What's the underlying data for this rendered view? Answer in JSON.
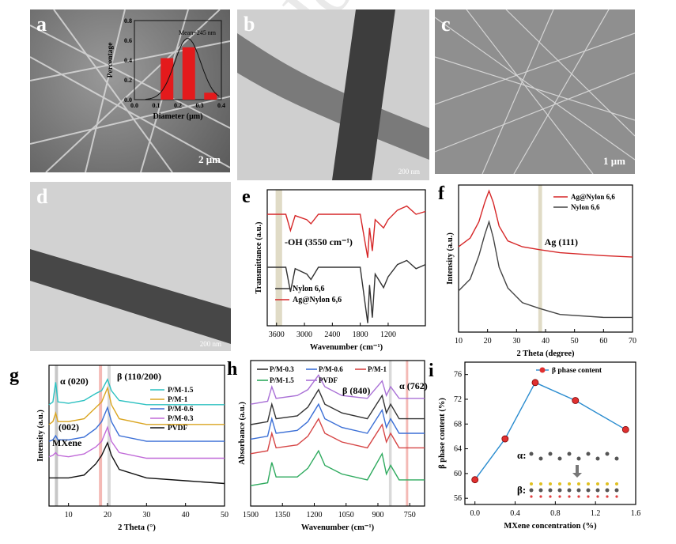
{
  "panels": {
    "a": {
      "label": "a",
      "scale_bar": "2 μm",
      "inset": {
        "type": "bar",
        "xlabel": "Diameter (μm)",
        "ylabel": "Percentage",
        "fit_label": "Mean=245 nm",
        "x_ticks": [
          "0.0",
          "0.1",
          "0.2",
          "0.3",
          "0.4"
        ],
        "y_ticks": [
          "0.0",
          "0.2",
          "0.4",
          "0.6",
          "0.8"
        ],
        "bars": [
          {
            "x": 0.15,
            "y": 0.42
          },
          {
            "x": 0.25,
            "y": 0.53
          },
          {
            "x": 0.35,
            "y": 0.07
          }
        ],
        "bar_color": "#e41a1c"
      }
    },
    "b": {
      "label": "b",
      "scale_bar": "200 nm"
    },
    "c": {
      "label": "c",
      "scale_bar": "1 μm"
    },
    "d": {
      "label": "d",
      "scale_bar": "200 nm"
    }
  },
  "chart_data": [
    {
      "panel": "e",
      "type": "line",
      "xlabel": "Wavenumber (cm⁻¹)",
      "ylabel": "Transmittance (a.u.)",
      "x_ticks": [
        3600,
        3000,
        2400,
        1800,
        1200
      ],
      "xlim": [
        3800,
        400
      ],
      "reversed_x": true,
      "annotation": "-OH (3550 cm⁻¹)",
      "highlight_band": [
        3480,
        3620
      ],
      "series": [
        {
          "name": "Nylon 6,6",
          "color": "#333333",
          "points": [
            [
              3800,
              0.43
            ],
            [
              3400,
              0.43
            ],
            [
              3300,
              0.25
            ],
            [
              3200,
              0.42
            ],
            [
              2950,
              0.38
            ],
            [
              2860,
              0.34
            ],
            [
              2700,
              0.43
            ],
            [
              1800,
              0.43
            ],
            [
              1640,
              0.02
            ],
            [
              1600,
              0.3
            ],
            [
              1540,
              0.06
            ],
            [
              1480,
              0.38
            ],
            [
              1300,
              0.28
            ],
            [
              1200,
              0.36
            ],
            [
              1000,
              0.45
            ],
            [
              800,
              0.48
            ],
            [
              600,
              0.42
            ],
            [
              400,
              0.45
            ]
          ]
        },
        {
          "name": "Ag@Nylon 6,6",
          "color": "#d62728",
          "points": [
            [
              3800,
              0.82
            ],
            [
              3400,
              0.82
            ],
            [
              3300,
              0.7
            ],
            [
              3200,
              0.81
            ],
            [
              2950,
              0.78
            ],
            [
              2860,
              0.75
            ],
            [
              2700,
              0.82
            ],
            [
              1800,
              0.82
            ],
            [
              1640,
              0.5
            ],
            [
              1600,
              0.72
            ],
            [
              1540,
              0.55
            ],
            [
              1480,
              0.78
            ],
            [
              1300,
              0.72
            ],
            [
              1200,
              0.78
            ],
            [
              1000,
              0.85
            ],
            [
              800,
              0.88
            ],
            [
              600,
              0.82
            ],
            [
              400,
              0.84
            ]
          ]
        }
      ]
    },
    {
      "panel": "f",
      "type": "line",
      "xlabel": "2 Theta (degree)",
      "ylabel": "Intensity (a.u.)",
      "x_ticks": [
        10,
        20,
        30,
        40,
        50,
        60,
        70
      ],
      "xlim": [
        10,
        70
      ],
      "annotation": "Ag (111)",
      "highlight_band": [
        37.5,
        38.8
      ],
      "series": [
        {
          "name": "Ag@Nylon 6,6",
          "color": "#d62728",
          "points": [
            [
              10,
              0.58
            ],
            [
              14,
              0.64
            ],
            [
              17,
              0.75
            ],
            [
              19,
              0.88
            ],
            [
              20.5,
              0.96
            ],
            [
              22,
              0.88
            ],
            [
              24,
              0.72
            ],
            [
              27,
              0.62
            ],
            [
              32,
              0.58
            ],
            [
              38,
              0.56
            ],
            [
              45,
              0.54
            ],
            [
              60,
              0.52
            ],
            [
              70,
              0.51
            ]
          ]
        },
        {
          "name": "Nylon 6,6",
          "color": "#444444",
          "points": [
            [
              10,
              0.28
            ],
            [
              14,
              0.36
            ],
            [
              17,
              0.52
            ],
            [
              19,
              0.66
            ],
            [
              20.5,
              0.75
            ],
            [
              22,
              0.64
            ],
            [
              24,
              0.44
            ],
            [
              27,
              0.3
            ],
            [
              32,
              0.2
            ],
            [
              38,
              0.16
            ],
            [
              45,
              0.12
            ],
            [
              60,
              0.1
            ],
            [
              70,
              0.1
            ]
          ]
        }
      ]
    },
    {
      "panel": "g",
      "type": "line",
      "xlabel": "2 Theta (°)",
      "ylabel": "Intensity (a.u.)",
      "x_ticks": [
        10,
        20,
        30,
        40,
        50
      ],
      "xlim": [
        5,
        50
      ],
      "annotations": [
        "α (020)",
        "β (110/200)",
        "(002)",
        "MXene"
      ],
      "highlight_bands": [
        {
          "range": [
            6.5,
            7.3
          ],
          "color": "#b9b9b9"
        },
        {
          "range": [
            17.8,
            18.6
          ],
          "color": "#f1a7a3"
        },
        {
          "range": [
            20.0,
            20.8
          ],
          "color": "#cfcfcf"
        }
      ],
      "series": [
        {
          "name": "P/M-1.5",
          "color": "#2cc1c1",
          "points": [
            [
              5,
              0.72
            ],
            [
              6,
              0.74
            ],
            [
              6.7,
              0.88
            ],
            [
              7.3,
              0.74
            ],
            [
              10,
              0.73
            ],
            [
              14,
              0.75
            ],
            [
              17,
              0.8
            ],
            [
              18.5,
              0.82
            ],
            [
              20,
              0.9
            ],
            [
              21,
              0.82
            ],
            [
              23,
              0.75
            ],
            [
              30,
              0.72
            ],
            [
              40,
              0.72
            ],
            [
              50,
              0.72
            ]
          ]
        },
        {
          "name": "P/M-1",
          "color": "#daa520",
          "points": [
            [
              5,
              0.58
            ],
            [
              6,
              0.6
            ],
            [
              6.7,
              0.66
            ],
            [
              7.3,
              0.6
            ],
            [
              10,
              0.6
            ],
            [
              14,
              0.62
            ],
            [
              17,
              0.7
            ],
            [
              18.5,
              0.74
            ],
            [
              20,
              0.84
            ],
            [
              21,
              0.72
            ],
            [
              23,
              0.62
            ],
            [
              30,
              0.58
            ],
            [
              40,
              0.58
            ],
            [
              50,
              0.58
            ]
          ]
        },
        {
          "name": "P/M-0.6",
          "color": "#3b6fd6",
          "points": [
            [
              5,
              0.46
            ],
            [
              6,
              0.47
            ],
            [
              6.7,
              0.5
            ],
            [
              7.3,
              0.47
            ],
            [
              10,
              0.47
            ],
            [
              14,
              0.49
            ],
            [
              17,
              0.55
            ],
            [
              18.5,
              0.6
            ],
            [
              20,
              0.7
            ],
            [
              21,
              0.6
            ],
            [
              23,
              0.5
            ],
            [
              30,
              0.46
            ],
            [
              40,
              0.46
            ],
            [
              50,
              0.46
            ]
          ]
        },
        {
          "name": "P/M-0.3",
          "color": "#c06ad8",
          "points": [
            [
              5,
              0.35
            ],
            [
              6,
              0.36
            ],
            [
              6.7,
              0.38
            ],
            [
              7.3,
              0.36
            ],
            [
              10,
              0.35
            ],
            [
              14,
              0.37
            ],
            [
              17,
              0.42
            ],
            [
              18.5,
              0.46
            ],
            [
              20,
              0.56
            ],
            [
              21,
              0.46
            ],
            [
              23,
              0.38
            ],
            [
              30,
              0.34
            ],
            [
              40,
              0.34
            ],
            [
              50,
              0.34
            ]
          ]
        },
        {
          "name": "PVDF",
          "color": "#111111",
          "points": [
            [
              5,
              0.2
            ],
            [
              10,
              0.2
            ],
            [
              14,
              0.22
            ],
            [
              17,
              0.3
            ],
            [
              18.5,
              0.36
            ],
            [
              20,
              0.45
            ],
            [
              21,
              0.36
            ],
            [
              23,
              0.26
            ],
            [
              30,
              0.2
            ],
            [
              40,
              0.18
            ],
            [
              50,
              0.16
            ]
          ]
        }
      ]
    },
    {
      "panel": "h",
      "type": "line",
      "xlabel": "Wavenumber (cm⁻¹)",
      "ylabel": "Absorbance (a.u.)",
      "x_ticks": [
        1500,
        1350,
        1200,
        1050,
        900,
        750
      ],
      "xlim": [
        1500,
        680
      ],
      "reversed_x": true,
      "annotations": [
        "β (840)",
        "α (762)"
      ],
      "highlight_bands": [
        {
          "range": [
            835,
            848
          ],
          "color": "#cfcfcf"
        },
        {
          "range": [
            757,
            768
          ],
          "color": "#f1a7a3"
        }
      ],
      "series": [
        {
          "name": "P/M-0.3",
          "color": "#333333",
          "points": [
            [
              1500,
              0.56
            ],
            [
              1420,
              0.58
            ],
            [
              1400,
              0.7
            ],
            [
              1380,
              0.6
            ],
            [
              1280,
              0.62
            ],
            [
              1230,
              0.68
            ],
            [
              1180,
              0.8
            ],
            [
              1150,
              0.7
            ],
            [
              1070,
              0.64
            ],
            [
              950,
              0.6
            ],
            [
              880,
              0.76
            ],
            [
              860,
              0.64
            ],
            [
              840,
              0.7
            ],
            [
              800,
              0.6
            ],
            [
              680,
              0.6
            ]
          ]
        },
        {
          "name": "P/M-0.6",
          "color": "#3b6fd6",
          "points": [
            [
              1500,
              0.46
            ],
            [
              1420,
              0.48
            ],
            [
              1400,
              0.6
            ],
            [
              1380,
              0.5
            ],
            [
              1280,
              0.52
            ],
            [
              1230,
              0.58
            ],
            [
              1180,
              0.7
            ],
            [
              1150,
              0.6
            ],
            [
              1070,
              0.54
            ],
            [
              950,
              0.5
            ],
            [
              880,
              0.66
            ],
            [
              860,
              0.54
            ],
            [
              840,
              0.6
            ],
            [
              800,
              0.5
            ],
            [
              680,
              0.5
            ]
          ]
        },
        {
          "name": "P/M-1",
          "color": "#d64545",
          "points": [
            [
              1500,
              0.36
            ],
            [
              1420,
              0.38
            ],
            [
              1400,
              0.5
            ],
            [
              1380,
              0.4
            ],
            [
              1280,
              0.42
            ],
            [
              1230,
              0.48
            ],
            [
              1180,
              0.6
            ],
            [
              1150,
              0.5
            ],
            [
              1070,
              0.44
            ],
            [
              950,
              0.4
            ],
            [
              880,
              0.56
            ],
            [
              860,
              0.44
            ],
            [
              840,
              0.5
            ],
            [
              800,
              0.4
            ],
            [
              680,
              0.4
            ]
          ]
        },
        {
          "name": "P/M-1.5",
          "color": "#2eaa5e",
          "points": [
            [
              1500,
              0.14
            ],
            [
              1420,
              0.16
            ],
            [
              1400,
              0.3
            ],
            [
              1380,
              0.2
            ],
            [
              1280,
              0.2
            ],
            [
              1230,
              0.26
            ],
            [
              1180,
              0.38
            ],
            [
              1150,
              0.28
            ],
            [
              1070,
              0.22
            ],
            [
              950,
              0.18
            ],
            [
              880,
              0.36
            ],
            [
              860,
              0.22
            ],
            [
              840,
              0.28
            ],
            [
              800,
              0.18
            ],
            [
              680,
              0.18
            ]
          ]
        },
        {
          "name": "PVDF",
          "color": "#a970d6",
          "points": [
            [
              1500,
              0.7
            ],
            [
              1420,
              0.72
            ],
            [
              1400,
              0.82
            ],
            [
              1380,
              0.74
            ],
            [
              1280,
              0.76
            ],
            [
              1230,
              0.8
            ],
            [
              1180,
              0.9
            ],
            [
              1150,
              0.82
            ],
            [
              1070,
              0.76
            ],
            [
              950,
              0.74
            ],
            [
              880,
              0.86
            ],
            [
              860,
              0.76
            ],
            [
              840,
              0.82
            ],
            [
              800,
              0.74
            ],
            [
              680,
              0.74
            ]
          ]
        }
      ]
    },
    {
      "panel": "i",
      "type": "line",
      "xlabel": "MXene concentration (%)",
      "ylabel": "β phase content (%)",
      "x_ticks": [
        "0.0",
        "0.4",
        "0.8",
        "1.2",
        "1.6"
      ],
      "y_ticks": [
        56,
        60,
        64,
        68,
        72,
        76
      ],
      "xlim": [
        -0.1,
        1.6
      ],
      "ylim": [
        55,
        78
      ],
      "legend": "β phase content",
      "inset_labels": [
        "α:",
        "β:"
      ],
      "series": [
        {
          "name": "β phase content",
          "color": "#2a8ccf",
          "marker_color": "#e03030",
          "x": [
            0.0,
            0.3,
            0.6,
            1.0,
            1.5
          ],
          "y": [
            59.0,
            65.6,
            74.7,
            71.8,
            67.1
          ]
        }
      ]
    }
  ]
}
